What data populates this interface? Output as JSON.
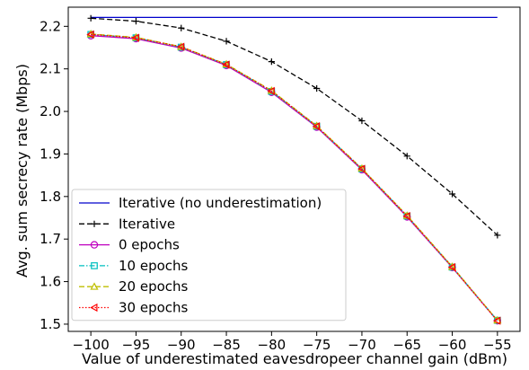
{
  "chart_data": {
    "type": "line",
    "xlabel": "Value of underestimated eavesdropeer channel gain (dBm)",
    "ylabel": "Avg. sum secrecy rate (Mbps)",
    "xlim": [
      -102.5,
      -52.5
    ],
    "ylim": [
      1.483,
      2.245
    ],
    "xticks": [
      -100,
      -95,
      -90,
      -85,
      -80,
      -75,
      -70,
      -65,
      -60,
      -55
    ],
    "yticks": [
      1.5,
      1.6,
      1.7,
      1.8,
      1.9,
      2.0,
      2.1,
      2.2
    ],
    "xtick_labels": [
      "−100",
      "−95",
      "−90",
      "−85",
      "−80",
      "−75",
      "−70",
      "−65",
      "−60",
      "−55"
    ],
    "ytick_labels": [
      "1.5",
      "1.6",
      "1.7",
      "1.8",
      "1.9",
      "2.0",
      "2.1",
      "2.2"
    ],
    "grid": false,
    "legend_position": "lower-left",
    "series": [
      {
        "name": "Iterative (no underestimation)",
        "color": "#0000cc",
        "dash": "solid",
        "marker": "none",
        "x": [
          -100,
          -95,
          -90,
          -85,
          -80,
          -75,
          -70,
          -65,
          -60,
          -55
        ],
        "y": [
          2.221,
          2.221,
          2.221,
          2.221,
          2.221,
          2.221,
          2.221,
          2.221,
          2.221,
          2.221
        ]
      },
      {
        "name": "Iterative",
        "color": "#000000",
        "dash": "dashed",
        "marker": "plus",
        "x": [
          -100,
          -95,
          -90,
          -85,
          -80,
          -75,
          -70,
          -65,
          -60,
          -55
        ],
        "y": [
          2.219,
          2.212,
          2.196,
          2.165,
          2.117,
          2.054,
          1.978,
          1.895,
          1.806,
          1.709
        ]
      },
      {
        "name": "0 epochs",
        "color": "#bf00bf",
        "dash": "solid",
        "marker": "circle",
        "x": [
          -100,
          -95,
          -90,
          -85,
          -80,
          -75,
          -70,
          -65,
          -60,
          -55
        ],
        "y": [
          2.178,
          2.171,
          2.149,
          2.108,
          2.045,
          1.963,
          1.863,
          1.752,
          1.633,
          1.508
        ]
      },
      {
        "name": "10 epochs",
        "color": "#00bfbf",
        "dash": "dashdot",
        "marker": "square",
        "x": [
          -100,
          -95,
          -90,
          -85,
          -80,
          -75,
          -70,
          -65,
          -60,
          -55
        ],
        "y": [
          2.181,
          2.173,
          2.151,
          2.11,
          2.047,
          1.965,
          1.865,
          1.754,
          1.634,
          1.509
        ]
      },
      {
        "name": "20 epochs",
        "color": "#bfbf00",
        "dash": "dashed",
        "marker": "triangle-up",
        "x": [
          -100,
          -95,
          -90,
          -85,
          -80,
          -75,
          -70,
          -65,
          -60,
          -55
        ],
        "y": [
          2.182,
          2.174,
          2.152,
          2.111,
          2.049,
          1.966,
          1.866,
          1.755,
          1.635,
          1.509
        ]
      },
      {
        "name": "30 epochs",
        "color": "#ff0000",
        "dash": "dotted",
        "marker": "triangle-left",
        "x": [
          -100,
          -95,
          -90,
          -85,
          -80,
          -75,
          -70,
          -65,
          -60,
          -55
        ],
        "y": [
          2.181,
          2.173,
          2.152,
          2.11,
          2.048,
          1.965,
          1.865,
          1.754,
          1.634,
          1.508
        ]
      }
    ]
  }
}
